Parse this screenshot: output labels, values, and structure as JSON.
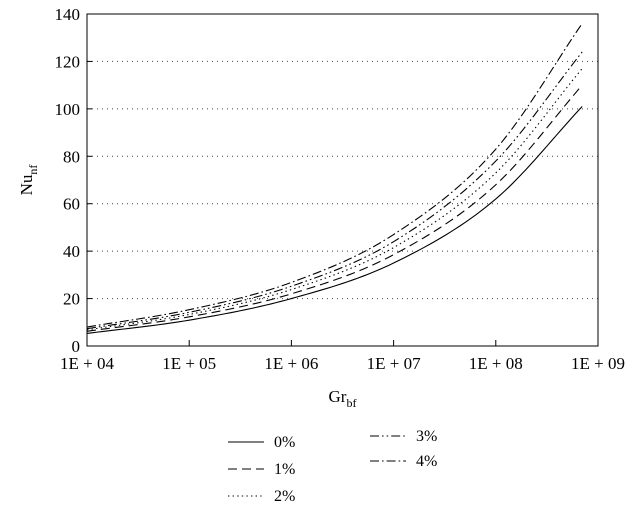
{
  "chart_data": {
    "type": "line",
    "xscale": "log",
    "xlim": [
      10000,
      1000000000
    ],
    "ylim": [
      0,
      140
    ],
    "yticks": [
      0,
      20,
      40,
      60,
      80,
      100,
      120,
      140
    ],
    "xtick_labels": [
      "1E + 04",
      "1E + 05",
      "1E + 06",
      "1E + 07",
      "1E + 08",
      "1E + 09"
    ],
    "ytick_labels": [
      "0",
      "20",
      "40",
      "60",
      "80",
      "100",
      "120",
      "140"
    ],
    "xlabel": {
      "main": "Gr",
      "sub": "bf"
    },
    "ylabel": {
      "main": "Nu",
      "sub": "nf"
    },
    "grid": "horizontal dotted",
    "legend_position": "below",
    "series": [
      {
        "name": "0%",
        "dash": "solid",
        "x": [
          10000,
          100000,
          1000000,
          10000000,
          100000000,
          700000000
        ],
        "y": [
          5.3,
          10.9,
          20.0,
          35.0,
          62.0,
          101.0
        ]
      },
      {
        "name": "1%",
        "dash": "dashed",
        "x": [
          10000,
          100000,
          1000000,
          10000000,
          100000000,
          700000000
        ],
        "y": [
          6.2,
          12.3,
          22.0,
          38.5,
          68.0,
          110.0
        ]
      },
      {
        "name": "2%",
        "dash": "dotted",
        "x": [
          10000,
          100000,
          1000000,
          10000000,
          100000000,
          700000000
        ],
        "y": [
          6.8,
          13.3,
          23.8,
          41.5,
          73.0,
          117.0
        ]
      },
      {
        "name": "3%",
        "dash": "dashdotdot",
        "x": [
          10000,
          100000,
          1000000,
          10000000,
          100000000,
          700000000
        ],
        "y": [
          7.3,
          14.2,
          25.2,
          44.0,
          78.0,
          124.0
        ]
      },
      {
        "name": "4%",
        "dash": "dashdot",
        "x": [
          10000,
          100000,
          1000000,
          10000000,
          100000000,
          700000000
        ],
        "y": [
          8.0,
          15.3,
          26.8,
          47.0,
          83.0,
          136.0
        ]
      }
    ]
  }
}
